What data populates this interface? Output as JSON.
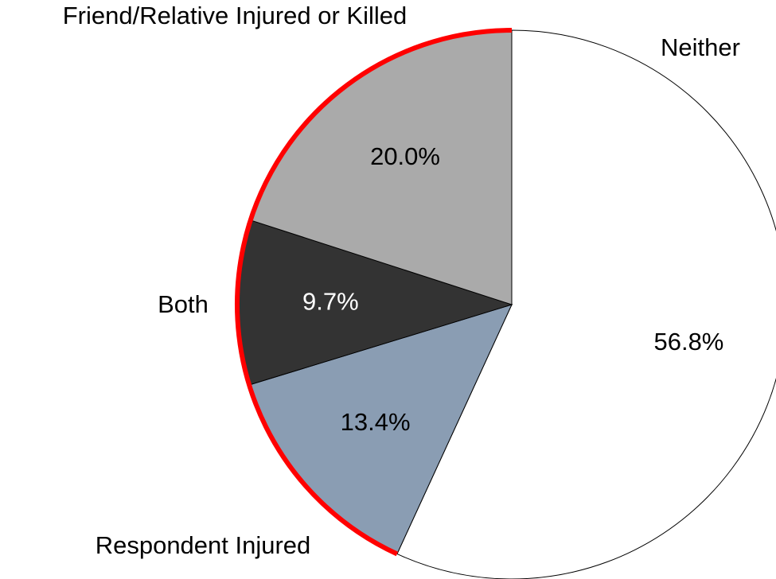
{
  "chart_data": {
    "type": "pie",
    "categories": [
      "Neither",
      "Respondent Injured",
      "Both",
      "Friend/Relative Injured or Killed"
    ],
    "values": [
      56.8,
      13.4,
      9.7,
      20.0
    ],
    "value_labels": [
      "56.8%",
      "13.4%",
      "9.7%",
      "20.0%"
    ],
    "colors": [
      "#ffffff",
      "#8a9db3",
      "#333333",
      "#aaaaaa"
    ]
  }
}
